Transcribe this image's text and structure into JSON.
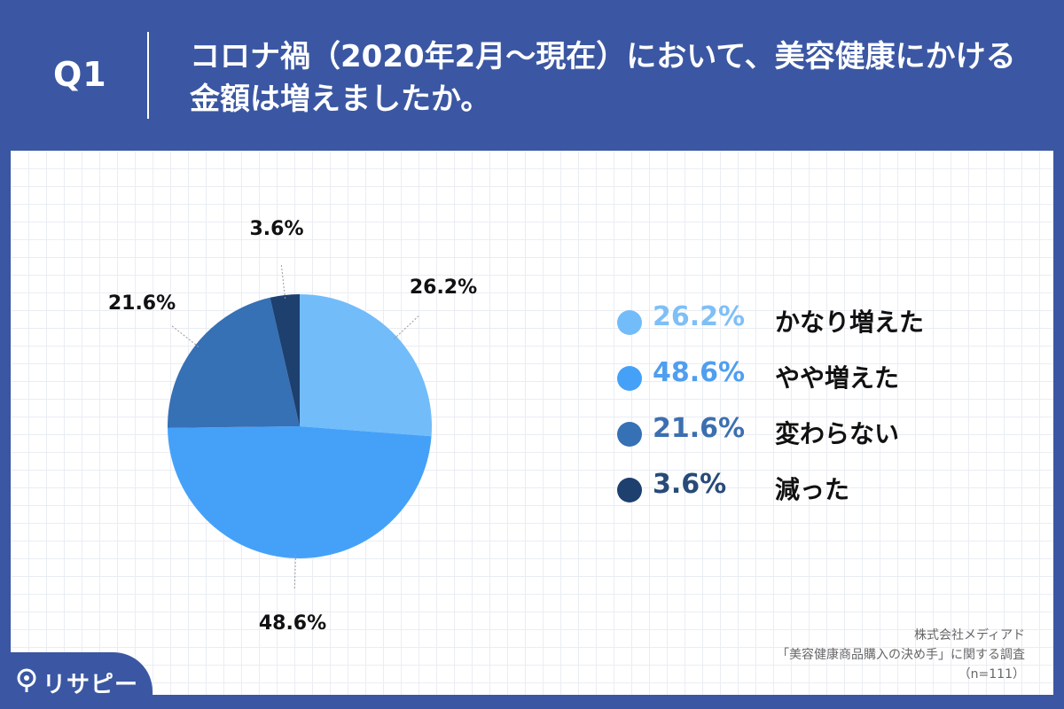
{
  "header": {
    "question_label": "Q1",
    "title": "コロナ禍（2020年2月〜現在）において、美容健康にかける金額は増えましたか。"
  },
  "chart_data": {
    "type": "pie",
    "title": "",
    "slices": [
      {
        "label": "かなり増えた",
        "value": 26.2,
        "display": "26.2%",
        "color": "#72bcfa"
      },
      {
        "label": "やや増えた",
        "value": 48.6,
        "display": "48.6%",
        "color": "#45a1f8"
      },
      {
        "label": "変わらない",
        "value": 21.6,
        "display": "21.6%",
        "color": "#3670b5"
      },
      {
        "label": "減った",
        "value": 3.6,
        "display": "3.6%",
        "color": "#1d406e"
      }
    ],
    "legend_placement": "right"
  },
  "legend_colors": {
    "text": [
      "#7fbff6",
      "#4f9ef0",
      "#3d6fb0",
      "#274a78"
    ]
  },
  "source": {
    "company": "株式会社メディアド",
    "survey": "「美容健康商品購入の決め手」に関する調査",
    "sample": "（n=111）"
  },
  "brand": {
    "name": "リサピー",
    "icon": "pin-icon"
  }
}
